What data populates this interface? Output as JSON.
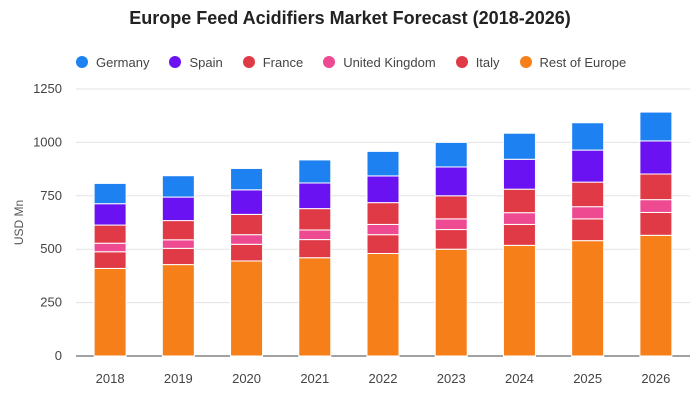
{
  "chart_data": {
    "type": "bar",
    "stacked": true,
    "title": "Europe Feed Acidifiers Market Forecast (2018-2026)",
    "xlabel": "",
    "ylabel": "USD Mn",
    "ylim": [
      0,
      1250
    ],
    "yticks": [
      0,
      250,
      500,
      750,
      1000,
      1250
    ],
    "grid": true,
    "legend_position": "top",
    "categories": [
      "2018",
      "2019",
      "2020",
      "2021",
      "2022",
      "2023",
      "2024",
      "2025",
      "2026"
    ],
    "series": [
      {
        "name": "Rest of Europe",
        "color": "#f77f1a",
        "values": [
          410,
          428,
          445,
          460,
          480,
          500,
          518,
          540,
          565
        ]
      },
      {
        "name": "Italy",
        "color": "#e03a46",
        "values": [
          78,
          76,
          78,
          85,
          88,
          92,
          98,
          102,
          107
        ]
      },
      {
        "name": "United Kingdom",
        "color": "#ed4a92",
        "values": [
          40,
          40,
          45,
          45,
          48,
          50,
          55,
          57,
          60
        ]
      },
      {
        "name": "France",
        "color": "#e03a46",
        "values": [
          85,
          90,
          95,
          100,
          102,
          108,
          110,
          115,
          120
        ]
      },
      {
        "name": "Spain",
        "color": "#6a12f2",
        "values": [
          100,
          110,
          115,
          120,
          125,
          135,
          140,
          150,
          155
        ]
      },
      {
        "name": "Germany",
        "color": "#1d81f2",
        "values": [
          95,
          100,
          100,
          108,
          115,
          115,
          122,
          128,
          135
        ]
      }
    ],
    "legend_order": [
      "Germany",
      "Spain",
      "France",
      "United Kingdom",
      "Italy",
      "Rest of Europe"
    ]
  }
}
